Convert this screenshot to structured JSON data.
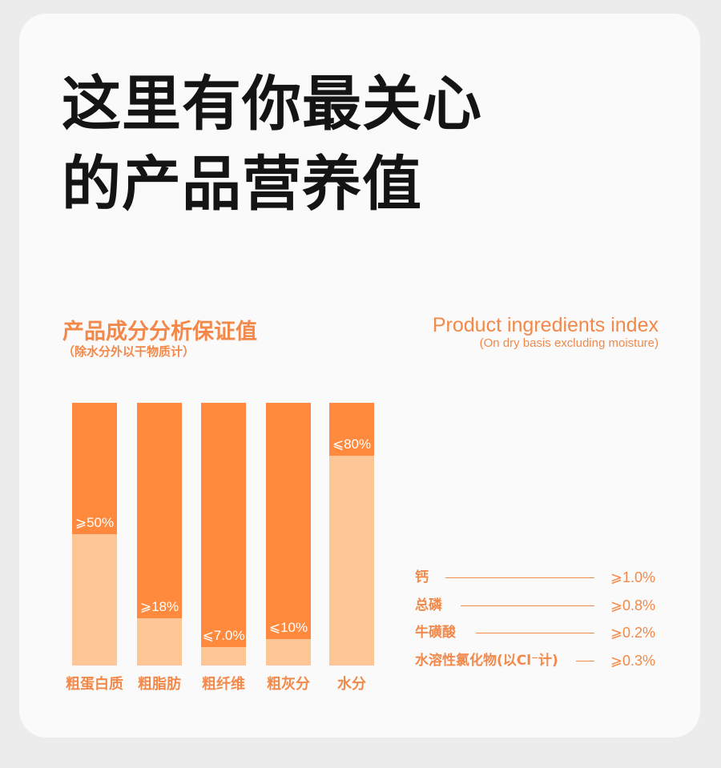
{
  "headline": {
    "line1": "这里有你最关心",
    "line2": "的产品营养值"
  },
  "section": {
    "title_cn": "产品成分分析保证值",
    "subtitle_cn": "（除水分外以干物质计）",
    "title_en": "Product ingredients index",
    "subtitle_en": "(On dry basis excluding moisture)"
  },
  "colors": {
    "bar_top": "#ff8a3d",
    "bar_fill": "#fec597",
    "accent_text": "#f2894a"
  },
  "chart_data": {
    "type": "bar",
    "stacked": true,
    "ylim": [
      0,
      100
    ],
    "categories": [
      "粗蛋白质",
      "粗脂肪",
      "粗纤维",
      "粗灰分",
      "水分"
    ],
    "values": [
      50,
      18,
      7.0,
      10,
      80
    ],
    "labels": [
      "⩾50%",
      "⩾18%",
      "⩽7.0%",
      "⩽10%",
      "⩽80%"
    ]
  },
  "minerals": [
    {
      "name": "钙",
      "value": "⩾1.0%"
    },
    {
      "name": "总磷",
      "value": "⩾0.8%"
    },
    {
      "name": "牛磺酸",
      "value": "⩾0.2%"
    },
    {
      "name": "水溶性氯化物(以Cl⁻计)",
      "value": "⩾0.3%"
    }
  ]
}
